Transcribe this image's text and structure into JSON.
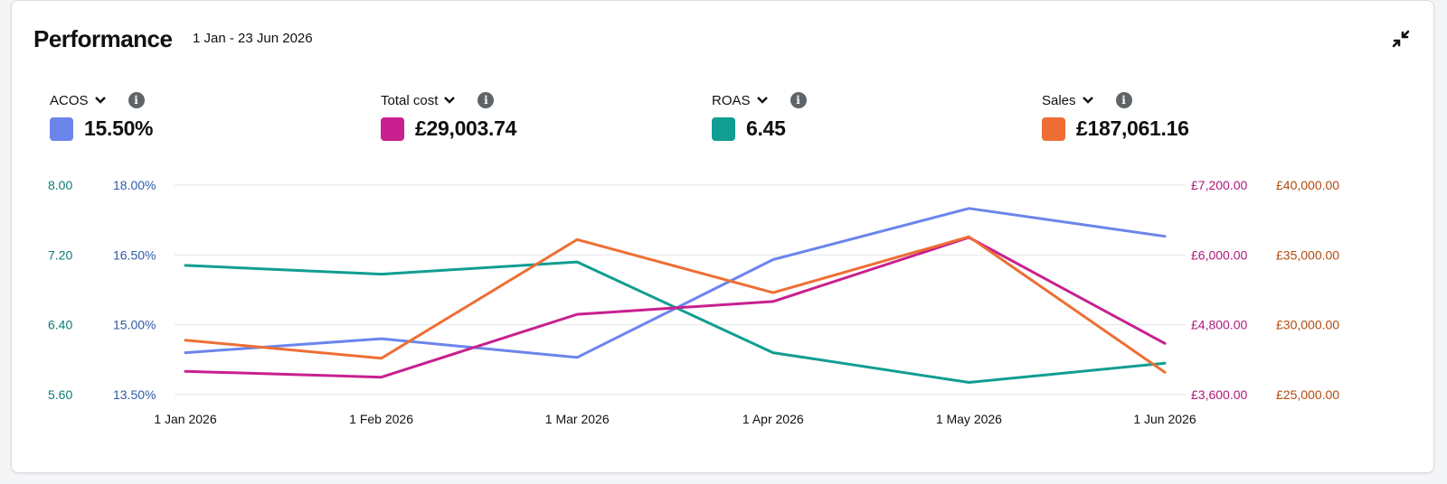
{
  "header": {
    "title": "Performance",
    "date_range": "1 Jan - 23 Jun 2026"
  },
  "metrics": [
    {
      "label": "ACOS",
      "value": "15.50%",
      "color": "#6b85eb"
    },
    {
      "label": "Total cost",
      "value": "£29,003.74",
      "color": "#c8208f"
    },
    {
      "label": "ROAS",
      "value": "6.45",
      "color": "#119d92"
    },
    {
      "label": "Sales",
      "value": "£187,061.16",
      "color": "#ee6e34"
    }
  ],
  "chart_data": {
    "type": "line",
    "x": [
      "1 Jan 2026",
      "1 Feb 2026",
      "1 Mar 2026",
      "1 Apr 2026",
      "1 May 2026",
      "1 Jun 2026"
    ],
    "grid": true,
    "axes": {
      "roas": {
        "side": "left-outer",
        "range": [
          5.6,
          8.0
        ],
        "ticks": [
          "8.00",
          "7.20",
          "6.40",
          "5.60"
        ],
        "color": "#0e7d74"
      },
      "acos": {
        "side": "left-inner",
        "range": [
          13.5,
          18.0
        ],
        "ticks": [
          "18.00%",
          "16.50%",
          "15.00%",
          "13.50%"
        ],
        "color": "#2f5aa8"
      },
      "cost": {
        "side": "right-inner",
        "range": [
          3600,
          7200
        ],
        "ticks": [
          "£7,200.00",
          "£6,000.00",
          "£4,800.00",
          "£3,600.00"
        ],
        "color": "#b0177c"
      },
      "sales": {
        "side": "right-outer",
        "range": [
          25000,
          40000
        ],
        "ticks": [
          "£40,000.00",
          "£35,000.00",
          "£30,000.00",
          "£25,000.00"
        ],
        "color": "#b54a0e"
      }
    },
    "series": [
      {
        "name": "ACOS",
        "axis": "acos",
        "color": "#6b85eb",
        "values": [
          14.4,
          14.7,
          14.3,
          16.4,
          17.5,
          16.9
        ]
      },
      {
        "name": "ROAS",
        "axis": "roas",
        "color": "#119d92",
        "values": [
          7.08,
          6.98,
          7.12,
          6.08,
          5.74,
          5.96
        ]
      },
      {
        "name": "Total cost",
        "axis": "cost",
        "color": "#c8208f",
        "values": [
          4000.0,
          3900.0,
          4980.0,
          5200.0,
          6300.0,
          4480.0
        ]
      },
      {
        "name": "Sales",
        "axis": "sales",
        "color": "#ee6e34",
        "values": [
          28900,
          27600,
          36100,
          32300,
          36300,
          26600
        ]
      }
    ]
  }
}
